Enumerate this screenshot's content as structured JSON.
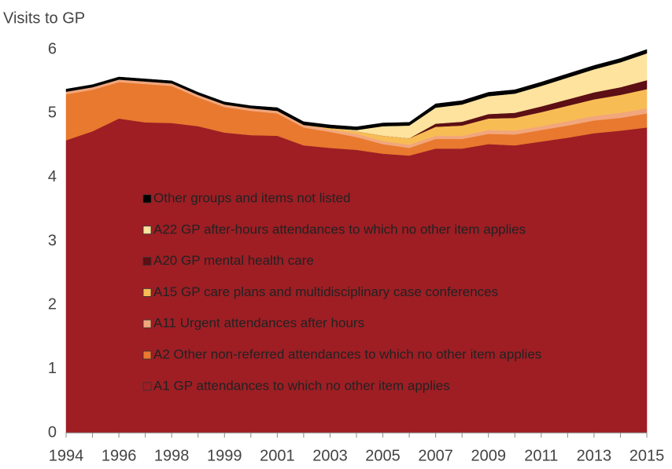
{
  "chart_data": {
    "type": "stacked_area",
    "y_label": "Visits to GP",
    "categories": [
      "1994",
      null,
      "1996",
      null,
      "1998",
      null,
      "1999",
      null,
      "2001",
      null,
      "2003",
      null,
      "2005",
      null,
      "2007",
      null,
      "2009",
      null,
      "2011",
      null,
      "2013",
      null,
      "2015"
    ],
    "ylim": [
      0,
      6
    ],
    "yticks": [
      0,
      1,
      2,
      3,
      4,
      5,
      6
    ],
    "legend": "center",
    "series": [
      {
        "name": "A1 GP attendances to which no other item applies",
        "color": "#9e1e24",
        "values": [
          4.58,
          4.72,
          4.92,
          4.86,
          4.85,
          4.8,
          4.7,
          4.66,
          4.65,
          4.5,
          4.46,
          4.43,
          4.37,
          4.34,
          4.45,
          4.45,
          4.52,
          4.5,
          4.56,
          4.62,
          4.69,
          4.73,
          4.78
        ]
      },
      {
        "name": "A2 Other non-referred attendances to which no other item applies",
        "color": "#e8792e",
        "values": [
          0.72,
          0.65,
          0.57,
          0.6,
          0.58,
          0.45,
          0.4,
          0.38,
          0.35,
          0.28,
          0.25,
          0.2,
          0.15,
          0.12,
          0.15,
          0.15,
          0.16,
          0.17,
          0.18,
          0.19,
          0.2,
          0.2,
          0.22
        ]
      },
      {
        "name": "A11 Urgent attendances after hours",
        "color": "#f2a67c",
        "values": [
          0.04,
          0.04,
          0.04,
          0.04,
          0.04,
          0.04,
          0.04,
          0.04,
          0.04,
          0.04,
          0.04,
          0.05,
          0.05,
          0.05,
          0.05,
          0.05,
          0.06,
          0.06,
          0.06,
          0.07,
          0.07,
          0.08,
          0.08
        ]
      },
      {
        "name": "A15 GP care plans and multidisciplinary case conferences",
        "color": "#f8bc55",
        "values": [
          0,
          0,
          0,
          0,
          0,
          0,
          0,
          0,
          0,
          0,
          0.02,
          0.04,
          0.08,
          0.1,
          0.14,
          0.16,
          0.18,
          0.2,
          0.22,
          0.24,
          0.26,
          0.28,
          0.3
        ]
      },
      {
        "name": "A20 GP mental health care",
        "color": "#5c0f14",
        "values": [
          0,
          0,
          0,
          0,
          0,
          0,
          0,
          0,
          0,
          0,
          0,
          0,
          0,
          0,
          0.05,
          0.06,
          0.07,
          0.08,
          0.09,
          0.1,
          0.11,
          0.12,
          0.14
        ]
      },
      {
        "name": "A22 GP after-hours attendances to which no other item applies",
        "color": "#fde39e",
        "values": [
          0,
          0,
          0,
          0,
          0,
          0,
          0,
          0,
          0,
          0,
          0,
          0.02,
          0.15,
          0.2,
          0.25,
          0.27,
          0.28,
          0.3,
          0.32,
          0.34,
          0.36,
          0.39,
          0.42
        ]
      },
      {
        "name": "Other groups and items not listed",
        "color": "#000000",
        "values": [
          0.04,
          0.04,
          0.04,
          0.04,
          0.04,
          0.04,
          0.04,
          0.04,
          0.05,
          0.05,
          0.05,
          0.05,
          0.05,
          0.05,
          0.06,
          0.06,
          0.06,
          0.06,
          0.06,
          0.06,
          0.06,
          0.06,
          0.06
        ]
      }
    ]
  }
}
